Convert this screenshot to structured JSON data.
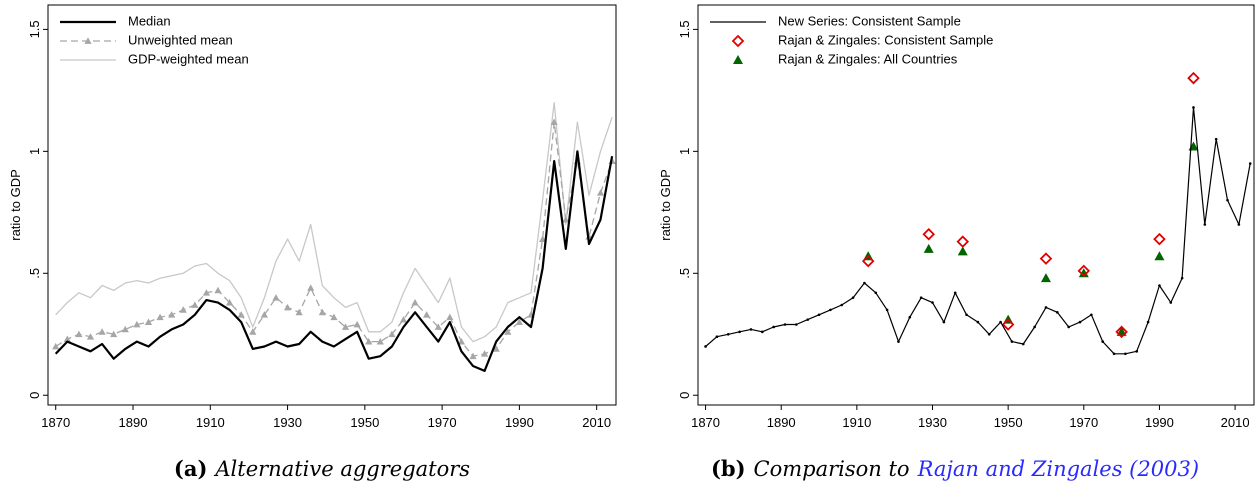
{
  "chart_data": [
    {
      "type": "line",
      "y_label": "ratio to GDP",
      "caption": {
        "label": "(a)",
        "text": "Alternative aggregators"
      },
      "xlim": [
        1868,
        2015
      ],
      "xticks": [
        1870,
        1890,
        1910,
        1930,
        1950,
        1970,
        1990,
        2010
      ],
      "ylim": [
        -0.04,
        1.6
      ],
      "yticks": [
        0,
        {
          "value": 0.5,
          "label": ".5"
        },
        1,
        1.5
      ],
      "legend": "top-left",
      "x": [
        1870,
        1873,
        1876,
        1879,
        1882,
        1885,
        1888,
        1891,
        1894,
        1897,
        1900,
        1903,
        1906,
        1909,
        1912,
        1915,
        1918,
        1921,
        1924,
        1927,
        1930,
        1933,
        1936,
        1939,
        1942,
        1945,
        1948,
        1951,
        1954,
        1957,
        1960,
        1963,
        1966,
        1969,
        1972,
        1975,
        1978,
        1981,
        1984,
        1987,
        1990,
        1993,
        1996,
        1999,
        2002,
        2005,
        2008,
        2011,
        2014
      ],
      "series": [
        {
          "name": "Median",
          "color": "#000000",
          "width": 2.2,
          "dashed": false,
          "marker": null,
          "values": [
            0.17,
            0.22,
            0.2,
            0.18,
            0.21,
            0.15,
            0.19,
            0.22,
            0.2,
            0.24,
            0.27,
            0.29,
            0.33,
            0.39,
            0.38,
            0.35,
            0.3,
            0.19,
            0.2,
            0.22,
            0.2,
            0.21,
            0.26,
            0.22,
            0.2,
            0.23,
            0.26,
            0.15,
            0.16,
            0.2,
            0.28,
            0.34,
            0.28,
            0.22,
            0.3,
            0.18,
            0.12,
            0.1,
            0.22,
            0.28,
            0.32,
            0.28,
            0.52,
            0.96,
            0.6,
            1.0,
            0.62,
            0.72,
            0.98
          ]
        },
        {
          "name": "Unweighted mean",
          "color": "#a6a6a6",
          "width": 1.3,
          "dashed": true,
          "marker": "triangle",
          "values": [
            0.2,
            0.23,
            0.25,
            0.24,
            0.26,
            0.25,
            0.27,
            0.29,
            0.3,
            0.32,
            0.33,
            0.35,
            0.37,
            0.42,
            0.43,
            0.38,
            0.33,
            0.26,
            0.33,
            0.4,
            0.36,
            0.34,
            0.44,
            0.34,
            0.32,
            0.28,
            0.29,
            0.22,
            0.22,
            0.25,
            0.31,
            0.38,
            0.33,
            0.28,
            0.32,
            0.22,
            0.16,
            0.17,
            0.19,
            0.26,
            0.3,
            0.33,
            0.64,
            1.12,
            0.72,
            0.96,
            0.65,
            0.83,
            0.96
          ]
        },
        {
          "name": "GDP-weighted mean",
          "color": "#c8c8c8",
          "width": 1.3,
          "dashed": false,
          "marker": null,
          "values": [
            0.33,
            0.38,
            0.42,
            0.4,
            0.45,
            0.43,
            0.46,
            0.47,
            0.46,
            0.48,
            0.49,
            0.5,
            0.53,
            0.54,
            0.5,
            0.47,
            0.4,
            0.28,
            0.4,
            0.55,
            0.64,
            0.55,
            0.7,
            0.45,
            0.4,
            0.36,
            0.38,
            0.26,
            0.26,
            0.3,
            0.42,
            0.52,
            0.45,
            0.38,
            0.48,
            0.28,
            0.22,
            0.24,
            0.28,
            0.38,
            0.4,
            0.42,
            0.8,
            1.2,
            0.7,
            1.12,
            0.82,
            1.0,
            1.14
          ]
        }
      ]
    },
    {
      "type": "line",
      "y_label": "ratio to GDP",
      "caption": {
        "label": "(b)",
        "text": "Comparison to",
        "cite": "Rajan and Zingales (2003)"
      },
      "xlim": [
        1868,
        2015
      ],
      "xticks": [
        1870,
        1890,
        1910,
        1930,
        1950,
        1970,
        1990,
        2010
      ],
      "ylim": [
        -0.04,
        1.6
      ],
      "yticks": [
        0,
        {
          "value": 0.5,
          "label": ".5"
        },
        1,
        1.5
      ],
      "legend": "top-left",
      "x": [
        1870,
        1873,
        1876,
        1879,
        1882,
        1885,
        1888,
        1891,
        1894,
        1897,
        1900,
        1903,
        1906,
        1909,
        1912,
        1915,
        1918,
        1921,
        1924,
        1927,
        1930,
        1933,
        1936,
        1939,
        1942,
        1945,
        1948,
        1951,
        1954,
        1957,
        1960,
        1963,
        1966,
        1969,
        1972,
        1975,
        1978,
        1981,
        1984,
        1987,
        1990,
        1993,
        1996,
        1999,
        2002,
        2005,
        2008,
        2011,
        2014
      ],
      "series": [
        {
          "name": "New Series: Consistent Sample",
          "type": "line",
          "color": "#000000",
          "width": 1.2,
          "dashed": false,
          "marker": "dot",
          "values": [
            0.2,
            0.24,
            0.25,
            0.26,
            0.27,
            0.26,
            0.28,
            0.29,
            0.29,
            0.31,
            0.33,
            0.35,
            0.37,
            0.4,
            0.46,
            0.42,
            0.35,
            0.22,
            0.32,
            0.4,
            0.38,
            0.3,
            0.42,
            0.33,
            0.3,
            0.25,
            0.3,
            0.22,
            0.21,
            0.28,
            0.36,
            0.34,
            0.28,
            0.3,
            0.33,
            0.22,
            0.17,
            0.17,
            0.18,
            0.3,
            0.45,
            0.38,
            0.48,
            1.18,
            0.7,
            1.05,
            0.8,
            0.7,
            0.95
          ]
        },
        {
          "name": "Rajan & Zingales: Consistent Sample",
          "type": "scatter",
          "color": "#e00000",
          "marker": "diamond",
          "x": [
            1913,
            1929,
            1938,
            1950,
            1960,
            1970,
            1980,
            1990,
            1999
          ],
          "values": [
            0.55,
            0.66,
            0.63,
            0.29,
            0.56,
            0.51,
            0.26,
            0.64,
            1.3
          ]
        },
        {
          "name": "Rajan & Zingales: All Countries",
          "type": "scatter",
          "color": "#006400",
          "marker": "triangle",
          "x": [
            1913,
            1929,
            1938,
            1950,
            1960,
            1970,
            1980,
            1990,
            1999
          ],
          "values": [
            0.57,
            0.6,
            0.59,
            0.31,
            0.48,
            0.5,
            0.26,
            0.57,
            1.02
          ]
        }
      ]
    }
  ]
}
